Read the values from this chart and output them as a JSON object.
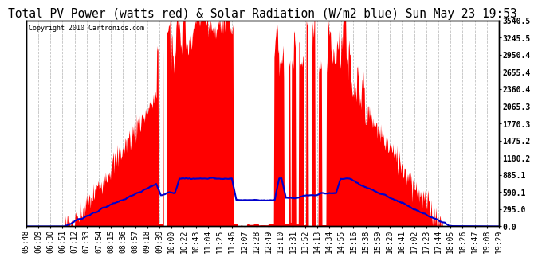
{
  "title": "Total PV Power (watts red) & Solar Radiation (W/m2 blue) Sun May 23 19:53",
  "copyright": "Copyright 2010 Cartronics.com",
  "yticks": [
    0.0,
    295.0,
    590.1,
    885.1,
    1180.2,
    1475.2,
    1770.3,
    2065.3,
    2360.4,
    2655.4,
    2950.4,
    3245.5,
    3540.5
  ],
  "ymax": 3540.5,
  "ymin": 0.0,
  "background_color": "#ffffff",
  "plot_bg_color": "#ffffff",
  "grid_color": "#bbbbbb",
  "red_color": "#ff0000",
  "blue_color": "#0000cc",
  "title_fontsize": 10.5,
  "tick_fontsize": 7,
  "xtick_labels": [
    "05:48",
    "06:09",
    "06:30",
    "06:51",
    "07:12",
    "07:33",
    "07:54",
    "08:15",
    "08:36",
    "08:57",
    "09:18",
    "09:39",
    "10:00",
    "10:22",
    "10:43",
    "11:04",
    "11:25",
    "11:46",
    "12:07",
    "12:28",
    "12:49",
    "13:10",
    "13:31",
    "13:52",
    "14:13",
    "14:34",
    "14:55",
    "15:16",
    "15:38",
    "15:59",
    "16:20",
    "16:41",
    "17:02",
    "17:23",
    "17:44",
    "18:05",
    "18:26",
    "18:47",
    "19:08",
    "19:29"
  ]
}
